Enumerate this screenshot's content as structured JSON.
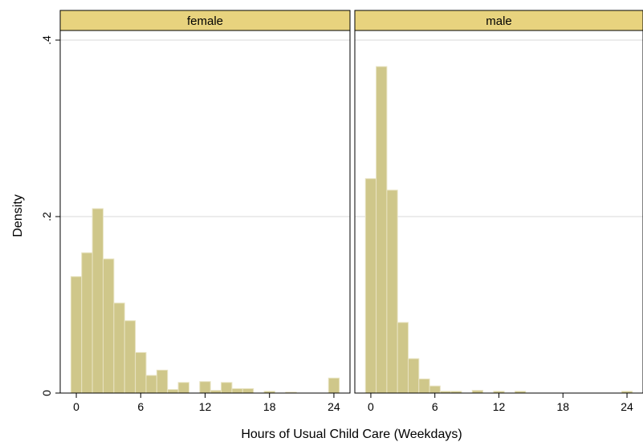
{
  "chart_data": {
    "type": "bar",
    "subtype": "histogram",
    "ylabel": "Density",
    "xlabel": "Hours of Usual Child Care (Weekdays)",
    "ylim": [
      0,
      0.4
    ],
    "xlim": [
      -1.5,
      25.5
    ],
    "y_ticks": [
      {
        "value": 0,
        "label": "0"
      },
      {
        "value": 0.2,
        "label": ".2"
      },
      {
        "value": 0.4,
        "label": ".4"
      }
    ],
    "x_ticks": [
      {
        "value": 0,
        "label": "0"
      },
      {
        "value": 6,
        "label": "6"
      },
      {
        "value": 12,
        "label": "12"
      },
      {
        "value": 18,
        "label": "18"
      },
      {
        "value": 24,
        "label": "24"
      }
    ],
    "grid": true,
    "bar_color": "#cfc78a",
    "bar_edge_color": "#e8e3c2",
    "strip_color": "#e8d37e",
    "panels": [
      {
        "label": "female",
        "bins": [
          {
            "x0": -0.5,
            "x1": 0.5,
            "density": 0.132
          },
          {
            "x0": 0.5,
            "x1": 1.5,
            "density": 0.159
          },
          {
            "x0": 1.5,
            "x1": 2.5,
            "density": 0.209
          },
          {
            "x0": 2.5,
            "x1": 3.5,
            "density": 0.152
          },
          {
            "x0": 3.5,
            "x1": 4.5,
            "density": 0.102
          },
          {
            "x0": 4.5,
            "x1": 5.5,
            "density": 0.082
          },
          {
            "x0": 5.5,
            "x1": 6.5,
            "density": 0.046
          },
          {
            "x0": 6.5,
            "x1": 7.5,
            "density": 0.02
          },
          {
            "x0": 7.5,
            "x1": 8.5,
            "density": 0.026
          },
          {
            "x0": 8.5,
            "x1": 9.5,
            "density": 0.004
          },
          {
            "x0": 9.5,
            "x1": 10.5,
            "density": 0.012
          },
          {
            "x0": 10.5,
            "x1": 11.5,
            "density": 0.0
          },
          {
            "x0": 11.5,
            "x1": 12.5,
            "density": 0.013
          },
          {
            "x0": 12.5,
            "x1": 13.5,
            "density": 0.003
          },
          {
            "x0": 13.5,
            "x1": 14.5,
            "density": 0.012
          },
          {
            "x0": 14.5,
            "x1": 15.5,
            "density": 0.005
          },
          {
            "x0": 15.5,
            "x1": 16.5,
            "density": 0.005
          },
          {
            "x0": 16.5,
            "x1": 17.5,
            "density": 0.0
          },
          {
            "x0": 17.5,
            "x1": 18.5,
            "density": 0.002
          },
          {
            "x0": 18.5,
            "x1": 19.5,
            "density": 0.0
          },
          {
            "x0": 19.5,
            "x1": 20.5,
            "density": 0.001
          },
          {
            "x0": 20.5,
            "x1": 21.5,
            "density": 0.0
          },
          {
            "x0": 21.5,
            "x1": 22.5,
            "density": 0.0
          },
          {
            "x0": 22.5,
            "x1": 23.5,
            "density": 0.0
          },
          {
            "x0": 23.5,
            "x1": 24.5,
            "density": 0.017
          }
        ]
      },
      {
        "label": "male",
        "bins": [
          {
            "x0": -0.5,
            "x1": 0.5,
            "density": 0.243
          },
          {
            "x0": 0.5,
            "x1": 1.5,
            "density": 0.37
          },
          {
            "x0": 1.5,
            "x1": 2.5,
            "density": 0.23
          },
          {
            "x0": 2.5,
            "x1": 3.5,
            "density": 0.08
          },
          {
            "x0": 3.5,
            "x1": 4.5,
            "density": 0.039
          },
          {
            "x0": 4.5,
            "x1": 5.5,
            "density": 0.016
          },
          {
            "x0": 5.5,
            "x1": 6.5,
            "density": 0.008
          },
          {
            "x0": 6.5,
            "x1": 7.5,
            "density": 0.002
          },
          {
            "x0": 7.5,
            "x1": 8.5,
            "density": 0.002
          },
          {
            "x0": 8.5,
            "x1": 9.5,
            "density": 0.0
          },
          {
            "x0": 9.5,
            "x1": 10.5,
            "density": 0.003
          },
          {
            "x0": 10.5,
            "x1": 11.5,
            "density": 0.0
          },
          {
            "x0": 11.5,
            "x1": 12.5,
            "density": 0.002
          },
          {
            "x0": 12.5,
            "x1": 13.5,
            "density": 0.0
          },
          {
            "x0": 13.5,
            "x1": 14.5,
            "density": 0.002
          },
          {
            "x0": 14.5,
            "x1": 15.5,
            "density": 0.0
          },
          {
            "x0": 15.5,
            "x1": 16.5,
            "density": 0.0
          },
          {
            "x0": 16.5,
            "x1": 17.5,
            "density": 0.0
          },
          {
            "x0": 17.5,
            "x1": 18.5,
            "density": 0.0
          },
          {
            "x0": 18.5,
            "x1": 19.5,
            "density": 0.0
          },
          {
            "x0": 19.5,
            "x1": 20.5,
            "density": 0.0
          },
          {
            "x0": 20.5,
            "x1": 21.5,
            "density": 0.0
          },
          {
            "x0": 21.5,
            "x1": 22.5,
            "density": 0.0
          },
          {
            "x0": 22.5,
            "x1": 23.5,
            "density": 0.0
          },
          {
            "x0": 23.5,
            "x1": 24.5,
            "density": 0.002
          }
        ]
      }
    ]
  }
}
